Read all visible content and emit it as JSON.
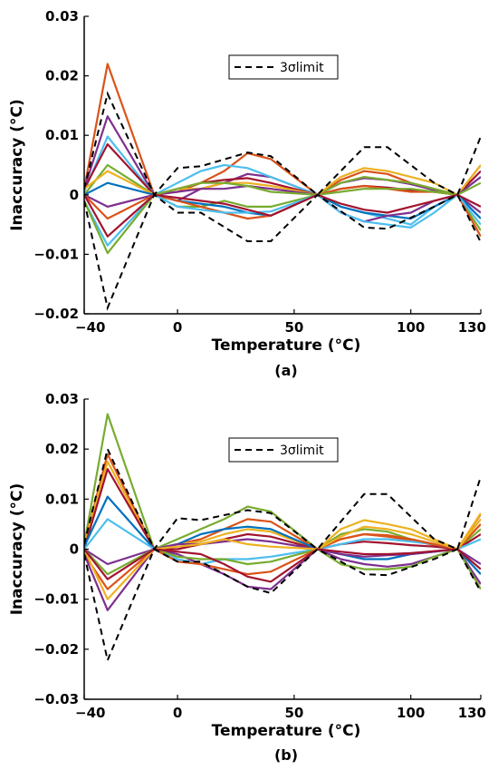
{
  "chart_data": [
    {
      "type": "line",
      "panel_label": "(a)",
      "xlabel": "Temperature (°C)",
      "ylabel": "Inaccuracy (°C)",
      "xlim": [
        -40,
        130
      ],
      "ylim": [
        -0.02,
        0.03
      ],
      "xticks": [
        -40,
        0,
        50,
        100,
        130
      ],
      "xtick_labels": [
        "−40",
        "0",
        "50",
        "100",
        "130"
      ],
      "yticks": [
        -0.02,
        -0.01,
        0,
        0.01,
        0.02,
        0.03
      ],
      "ytick_labels": [
        "−0.02",
        "−0.01",
        "0",
        "0.01",
        "0.02",
        "0.03"
      ],
      "legend": {
        "label": "3σlimit",
        "placement": "top-center"
      },
      "limit_upper": {
        "x": [
          -40,
          -30,
          -10,
          0,
          10,
          30,
          40,
          60,
          80,
          90,
          110,
          120,
          130
        ],
        "y": [
          0.001,
          0.017,
          0.0,
          0.0045,
          0.0048,
          0.0071,
          0.0065,
          0.0,
          0.008,
          0.008,
          0.002,
          0.0,
          0.0098
        ]
      },
      "limit_lower": {
        "x": [
          -40,
          -30,
          -10,
          0,
          10,
          30,
          40,
          60,
          80,
          90,
          110,
          120,
          130
        ],
        "y": [
          -0.001,
          -0.019,
          0.0,
          -0.003,
          -0.003,
          -0.0078,
          -0.0078,
          0.0,
          -0.0055,
          -0.0057,
          -0.002,
          0.0,
          -0.008
        ]
      },
      "sample_x": [
        -40,
        -30,
        -10,
        0,
        10,
        20,
        30,
        40,
        60,
        70,
        80,
        90,
        100,
        110,
        120,
        130
      ],
      "series": [
        {
          "color": "#D95319",
          "values": [
            0.001,
            0.022,
            0.0,
            0.0005,
            0.002,
            0.004,
            0.007,
            0.006,
            0.0,
            0.0025,
            0.004,
            0.0035,
            0.002,
            0.001,
            0.0,
            0.005
          ]
        },
        {
          "color": "#7E2F8E",
          "values": [
            0.001,
            0.0132,
            0.0,
            -0.001,
            0.001,
            0.002,
            0.0035,
            0.003,
            0.0,
            0.002,
            0.0028,
            0.0025,
            0.0018,
            0.0008,
            0.0,
            -0.003
          ]
        },
        {
          "color": "#4DBEEE",
          "values": [
            0.0005,
            0.0098,
            0.0,
            0.002,
            0.004,
            0.005,
            0.0045,
            0.003,
            0.0,
            -0.002,
            -0.003,
            -0.004,
            -0.005,
            -0.002,
            0.0,
            0.003
          ]
        },
        {
          "color": "#A2142F",
          "values": [
            0.001,
            0.0085,
            0.0,
            0.001,
            0.002,
            0.0025,
            0.0028,
            0.002,
            0.0,
            0.001,
            0.0015,
            0.0012,
            0.0008,
            0.0005,
            0.0,
            0.004
          ]
        },
        {
          "color": "#77AC30",
          "values": [
            0.0,
            0.005,
            0.0,
            -0.002,
            -0.002,
            -0.001,
            -0.002,
            -0.002,
            0.0,
            0.002,
            0.003,
            0.0025,
            0.002,
            0.001,
            0.0,
            -0.006
          ]
        },
        {
          "color": "#EDB120",
          "values": [
            0.001,
            0.004,
            0.0,
            0.001,
            0.001,
            0.002,
            0.002,
            0.0015,
            0.0,
            0.003,
            0.0045,
            0.004,
            0.003,
            0.002,
            0.0,
            0.005
          ]
        },
        {
          "color": "#0072BD",
          "values": [
            0.0,
            0.002,
            0.0,
            -0.001,
            -0.0015,
            -0.002,
            -0.003,
            -0.0035,
            0.0,
            -0.002,
            -0.003,
            -0.0035,
            -0.004,
            -0.002,
            0.0,
            -0.004
          ]
        },
        {
          "color": "#7E2F8E",
          "values": [
            0.0,
            -0.002,
            0.0,
            0.0005,
            0.001,
            0.001,
            0.0015,
            0.001,
            0.0,
            -0.003,
            -0.0045,
            -0.0035,
            -0.003,
            -0.001,
            0.0,
            0.003
          ]
        },
        {
          "color": "#D95319",
          "values": [
            0.0,
            -0.004,
            0.0,
            -0.001,
            -0.002,
            -0.003,
            -0.004,
            -0.0035,
            0.0,
            0.001,
            0.0015,
            0.001,
            0.0005,
            0.0005,
            0.0,
            -0.007
          ]
        },
        {
          "color": "#4DBEEE",
          "values": [
            -0.001,
            -0.0085,
            0.0,
            -0.002,
            -0.0025,
            -0.003,
            -0.003,
            -0.0028,
            0.0,
            -0.003,
            -0.0045,
            -0.005,
            -0.0055,
            -0.003,
            0.0,
            -0.005
          ]
        },
        {
          "color": "#77AC30",
          "values": [
            -0.001,
            -0.0098,
            0.0,
            0.001,
            0.002,
            0.002,
            0.0015,
            0.0005,
            0.0,
            0.0005,
            0.001,
            0.001,
            0.001,
            0.0005,
            0.0,
            0.002
          ]
        },
        {
          "color": "#A2142F",
          "values": [
            0.0,
            -0.007,
            0.0,
            -0.0005,
            -0.001,
            -0.0015,
            -0.0025,
            -0.0035,
            0.0,
            -0.0015,
            -0.0025,
            -0.003,
            -0.002,
            -0.001,
            0.0,
            -0.002
          ]
        }
      ]
    },
    {
      "type": "line",
      "panel_label": "(b)",
      "xlabel": "Temperature (°C)",
      "ylabel": "Inaccuracy (°C)",
      "xlim": [
        -40,
        130
      ],
      "ylim": [
        -0.03,
        0.03
      ],
      "xticks": [
        -40,
        0,
        50,
        100,
        130
      ],
      "xtick_labels": [
        "−40",
        "0",
        "50",
        "100",
        "130"
      ],
      "yticks": [
        -0.03,
        -0.02,
        -0.01,
        0,
        0.01,
        0.02,
        0.03
      ],
      "ytick_labels": [
        "−0.03",
        "−0.02",
        "−0.01",
        "0",
        "0.01",
        "0.02",
        "0.03"
      ],
      "legend": {
        "label": "3σlimit",
        "placement": "top-center"
      },
      "limit_upper": {
        "x": [
          -40,
          -30,
          -10,
          0,
          10,
          30,
          40,
          60,
          80,
          90,
          110,
          120,
          130
        ],
        "y": [
          0.001,
          0.02,
          0.0,
          0.0062,
          0.0058,
          0.0078,
          0.0072,
          0.0,
          0.011,
          0.011,
          0.002,
          0.0,
          0.0145
        ]
      },
      "limit_lower": {
        "x": [
          -40,
          -30,
          -10,
          0,
          10,
          30,
          40,
          60,
          80,
          90,
          110,
          120,
          130
        ],
        "y": [
          -0.001,
          -0.0222,
          0.0,
          -0.0025,
          -0.0025,
          -0.0075,
          -0.0088,
          0.0,
          -0.005,
          -0.0052,
          -0.002,
          0.0,
          -0.0085
        ]
      },
      "sample_x": [
        -40,
        -30,
        -10,
        0,
        10,
        20,
        30,
        40,
        60,
        70,
        80,
        90,
        100,
        110,
        120,
        130
      ],
      "series": [
        {
          "color": "#77AC30",
          "values": [
            0.001,
            0.027,
            0.0,
            0.002,
            0.004,
            0.006,
            0.0085,
            0.0075,
            0.0,
            0.003,
            0.004,
            0.0035,
            0.002,
            0.001,
            0.0,
            0.004
          ]
        },
        {
          "color": "#D95319",
          "values": [
            0.001,
            0.019,
            0.0,
            0.001,
            0.002,
            0.004,
            0.006,
            0.0055,
            0.0,
            0.002,
            0.003,
            0.0025,
            0.0018,
            0.0008,
            0.0,
            0.007
          ]
        },
        {
          "color": "#EDB120",
          "values": [
            0.001,
            0.0175,
            0.0,
            0.001,
            0.0015,
            0.003,
            0.004,
            0.0035,
            0.0,
            0.004,
            0.0058,
            0.005,
            0.004,
            0.002,
            0.0,
            0.0072
          ]
        },
        {
          "color": "#A2142F",
          "values": [
            0.0,
            0.016,
            0.0,
            0.0,
            0.001,
            0.002,
            0.003,
            0.0025,
            0.0,
            0.001,
            0.0015,
            0.0012,
            0.0008,
            0.0005,
            0.0,
            0.003
          ]
        },
        {
          "color": "#0072BD",
          "values": [
            0.0005,
            0.0105,
            0.0,
            0.001,
            0.003,
            0.004,
            0.0045,
            0.004,
            0.0,
            -0.001,
            -0.002,
            -0.002,
            -0.001,
            -0.0005,
            0.0,
            -0.005
          ]
        },
        {
          "color": "#4DBEEE",
          "values": [
            0.0,
            0.006,
            0.0,
            -0.002,
            -0.003,
            -0.002,
            -0.002,
            -0.0015,
            0.0,
            0.001,
            0.002,
            0.002,
            0.0015,
            0.001,
            0.0,
            0.002
          ]
        },
        {
          "color": "#7E2F8E",
          "values": [
            0.0,
            -0.003,
            0.0,
            -0.001,
            -0.003,
            -0.005,
            -0.0075,
            -0.008,
            0.0,
            -0.002,
            -0.003,
            -0.0035,
            -0.003,
            -0.0015,
            0.0,
            -0.007
          ]
        },
        {
          "color": "#77AC30",
          "values": [
            0.0,
            -0.005,
            0.0,
            -0.0015,
            -0.002,
            -0.002,
            -0.003,
            -0.0025,
            0.0,
            -0.003,
            -0.004,
            -0.004,
            -0.0035,
            -0.0015,
            0.0,
            -0.008
          ]
        },
        {
          "color": "#D95319",
          "values": [
            -0.001,
            -0.008,
            0.0,
            -0.0025,
            -0.003,
            -0.004,
            -0.005,
            -0.0045,
            0.0,
            0.002,
            0.003,
            0.0028,
            0.002,
            0.001,
            0.0,
            0.005
          ]
        },
        {
          "color": "#7E2F8E",
          "values": [
            -0.001,
            -0.0122,
            0.0,
            0.001,
            0.001,
            0.0015,
            0.002,
            0.0015,
            0.0,
            -0.001,
            -0.0015,
            -0.0012,
            -0.001,
            -0.0005,
            0.0,
            -0.003
          ]
        },
        {
          "color": "#EDB120",
          "values": [
            0.0,
            -0.01,
            0.0,
            0.0005,
            0.001,
            0.002,
            0.001,
            0.0005,
            0.0,
            0.0025,
            0.0045,
            0.004,
            0.003,
            0.0015,
            0.0,
            0.006
          ]
        },
        {
          "color": "#A2142F",
          "values": [
            0.0,
            -0.006,
            0.0,
            -0.0005,
            -0.001,
            -0.003,
            -0.0055,
            -0.0065,
            0.0,
            -0.0005,
            -0.001,
            -0.001,
            -0.0008,
            -0.0004,
            0.0,
            -0.004
          ]
        }
      ]
    }
  ]
}
